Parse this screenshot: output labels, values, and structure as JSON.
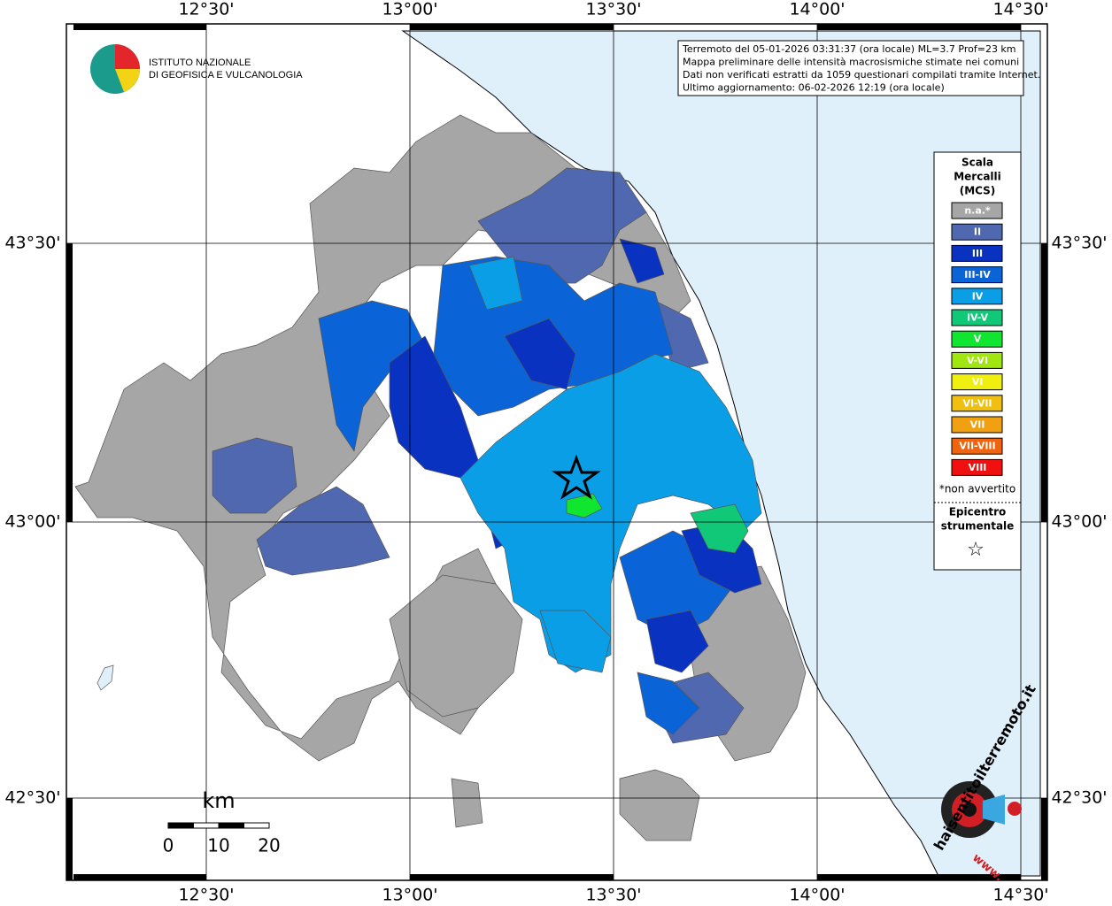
{
  "header": {
    "institute": [
      "ISTITUTO NAZIONALE",
      "DI GEOFISICA E VULCANOLOGIA"
    ]
  },
  "info": [
    "Terremoto del 05-01-2026 03:31:37 (ora locale) ML=3.7 Prof=23 km",
    "Mappa preliminare delle intensità macrosismiche stimate nei comuni",
    "Dati non verificati estratti da 1059 questionari compilati tramite Internet.",
    "Ultimo aggiornamento: 06-02-2026 12:19 (ora locale)"
  ],
  "map": {
    "lon_labels": [
      "12°30'",
      "13°00'",
      "13°30'",
      "14°00'",
      "14°30'"
    ],
    "lat_labels": [
      "43°30'",
      "43°00'",
      "42°30'"
    ]
  },
  "legend": {
    "title": [
      "Scala",
      "Mercalli",
      "(MCS)"
    ],
    "items": [
      {
        "label": "n.a.*",
        "color": "#a6a6a6"
      },
      {
        "label": "II",
        "color": "#5068b0"
      },
      {
        "label": "III",
        "color": "#0a32c0"
      },
      {
        "label": "III-IV",
        "color": "#0a64d8"
      },
      {
        "label": "IV",
        "color": "#0a9ee6"
      },
      {
        "label": "IV-V",
        "color": "#10c878"
      },
      {
        "label": "V",
        "color": "#10e630"
      },
      {
        "label": "V-VI",
        "color": "#a0e610"
      },
      {
        "label": "VI",
        "color": "#f0f010"
      },
      {
        "label": "VI-VII",
        "color": "#f0c010"
      },
      {
        "label": "VII",
        "color": "#f0a010"
      },
      {
        "label": "VII-VIII",
        "color": "#f06410"
      },
      {
        "label": "VIII",
        "color": "#f01010"
      }
    ],
    "note": "*non avvertito",
    "epicentre": [
      "Epicentro",
      "strumentale"
    ],
    "star": "☆"
  },
  "scale": {
    "unit": "km",
    "labels": [
      "0",
      "10",
      "20"
    ]
  },
  "site": {
    "name": "haisentitoilterremoto.it",
    "www": "www."
  }
}
